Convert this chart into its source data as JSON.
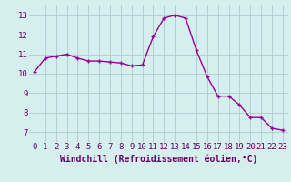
{
  "x": [
    0,
    1,
    2,
    3,
    4,
    5,
    6,
    7,
    8,
    9,
    10,
    11,
    12,
    13,
    14,
    15,
    16,
    17,
    18,
    19,
    20,
    21,
    22,
    23
  ],
  "y": [
    10.1,
    10.8,
    10.9,
    11.0,
    10.8,
    10.65,
    10.65,
    10.6,
    10.55,
    10.4,
    10.45,
    11.9,
    12.85,
    13.0,
    12.85,
    11.2,
    9.85,
    8.85,
    8.85,
    8.4,
    7.75,
    7.75,
    7.2,
    7.1
  ],
  "line_color": "#990099",
  "marker": "+",
  "marker_size": 3,
  "marker_linewidth": 1.0,
  "bg_color": "#d5eeee",
  "grid_color": "#aacccc",
  "xlabel": "Windchill (Refroidissement éolien,°C)",
  "xlim": [
    -0.5,
    23.5
  ],
  "ylim": [
    6.5,
    13.5
  ],
  "yticks": [
    7,
    8,
    9,
    10,
    11,
    12,
    13
  ],
  "xticks": [
    0,
    1,
    2,
    3,
    4,
    5,
    6,
    7,
    8,
    9,
    10,
    11,
    12,
    13,
    14,
    15,
    16,
    17,
    18,
    19,
    20,
    21,
    22,
    23
  ],
  "tick_fontsize": 6.5,
  "xlabel_fontsize": 7.0,
  "label_color": "#660066",
  "linewidth": 1.0
}
